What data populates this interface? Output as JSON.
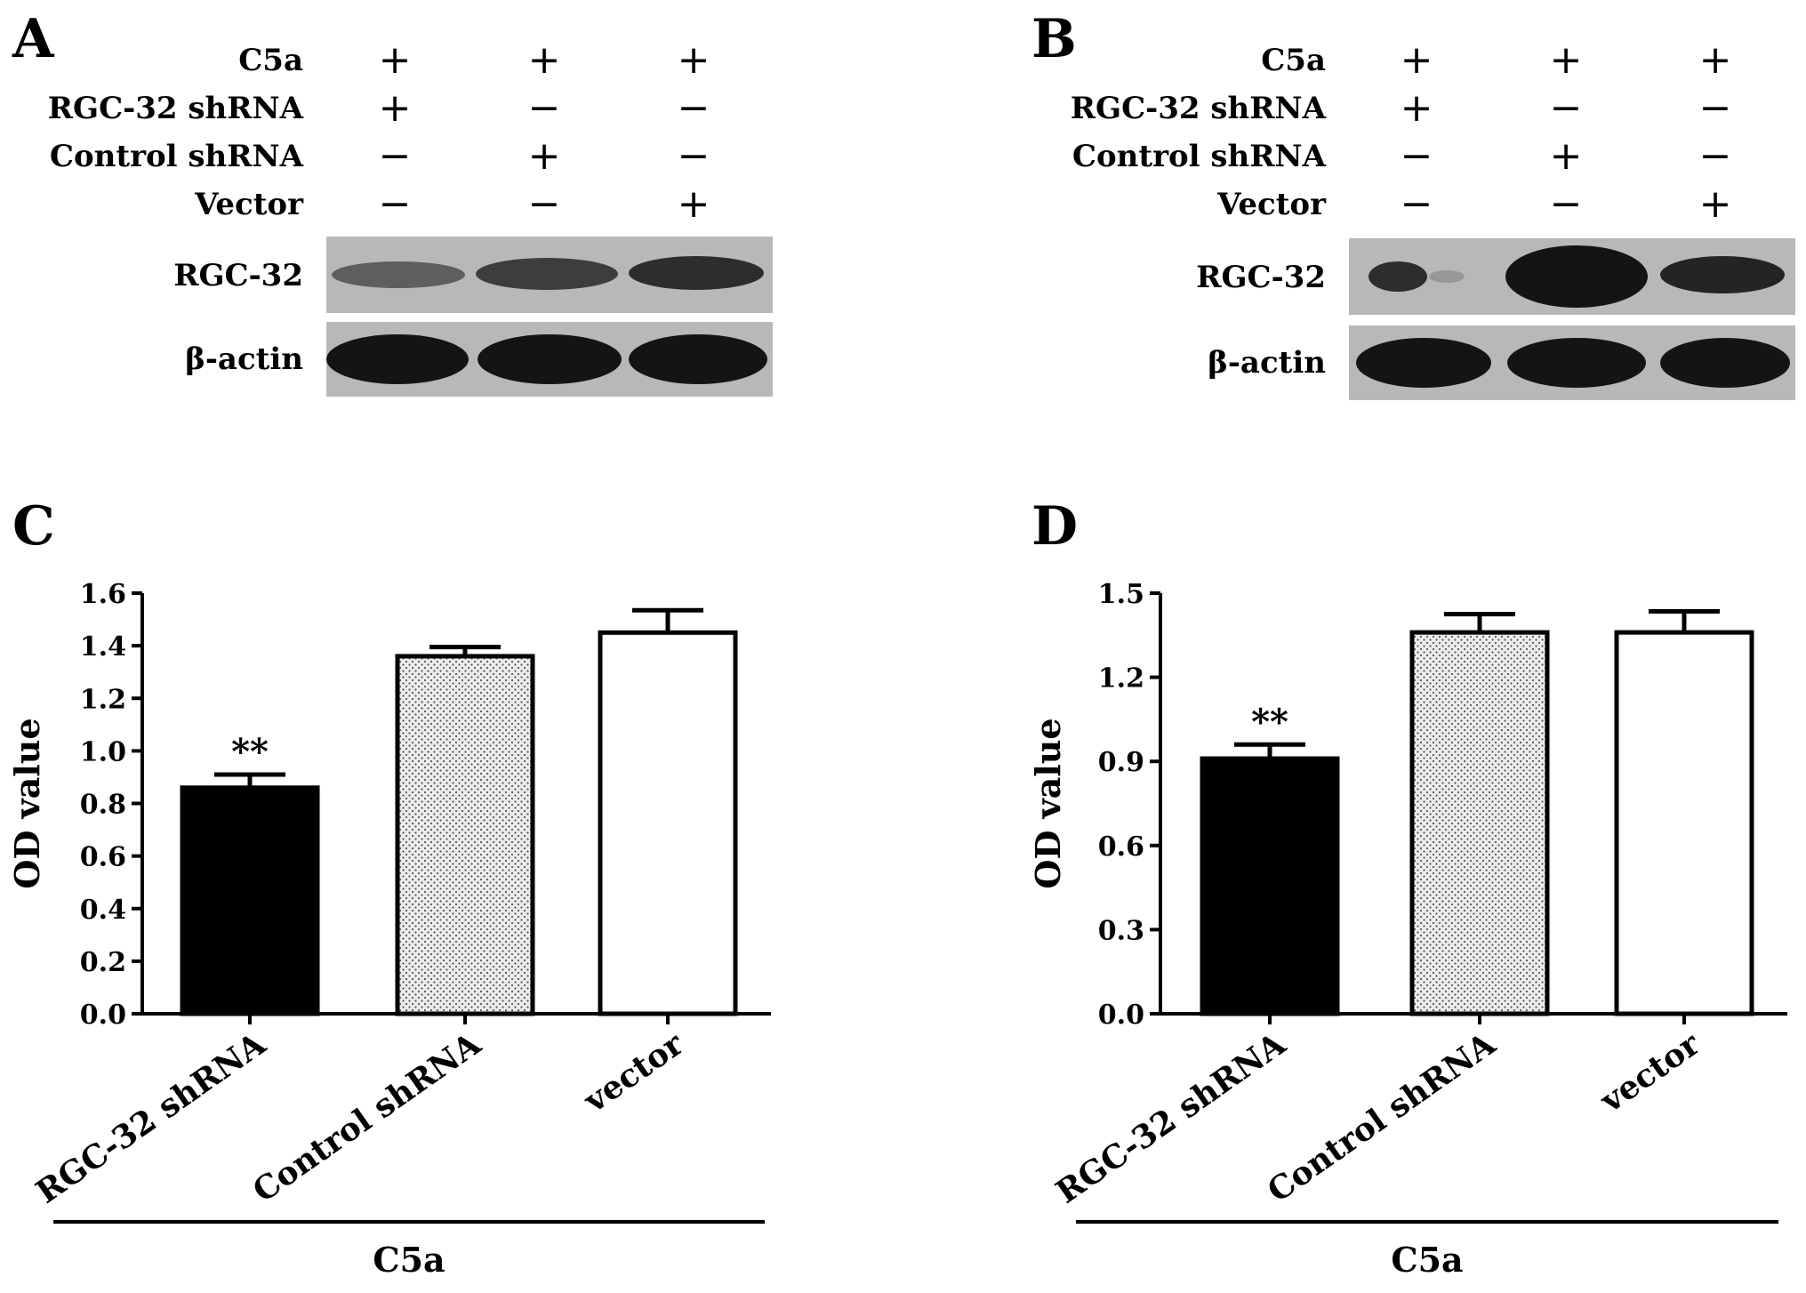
{
  "panels": {
    "A": {
      "letter": "A"
    },
    "B": {
      "letter": "B"
    },
    "C": {
      "letter": "C"
    },
    "D": {
      "letter": "D"
    }
  },
  "blot_labels": {
    "treatments": [
      "C5a",
      "RGC-32 shRNA",
      "Control shRNA",
      "Vector"
    ],
    "signs": [
      [
        "+",
        "+",
        "+"
      ],
      [
        "+",
        "−",
        "−"
      ],
      [
        "−",
        "+",
        "−"
      ],
      [
        "−",
        "−",
        "+"
      ]
    ],
    "bands": [
      "RGC-32",
      "β-actin"
    ]
  },
  "blot_intensities": {
    "A": {
      "RGC-32": [
        0.55,
        0.75,
        0.85
      ],
      "β-actin": [
        1.0,
        1.0,
        1.0
      ]
    },
    "B": {
      "RGC-32": [
        0.25,
        1.0,
        0.85
      ],
      "β-actin": [
        1.0,
        1.0,
        1.0
      ]
    }
  },
  "colors": {
    "black_bar": "#000000",
    "dotted_bar": "#e8e8e8",
    "white_bar": "#ffffff",
    "blot_bg": "#b8b8b8",
    "band": "#141414"
  },
  "chart_data": [
    {
      "type": "bar",
      "panel": "C",
      "title": "",
      "ylabel": "OD value",
      "xlabel": "C5a",
      "categories": [
        "RGC-32 shRNA",
        "Control shRNA",
        "vector"
      ],
      "values": [
        0.86,
        1.36,
        1.45
      ],
      "errors": [
        0.05,
        0.035,
        0.085
      ],
      "annotations": [
        "**",
        "",
        ""
      ],
      "ylim": [
        0,
        1.6
      ],
      "yticks": [
        "0.0",
        "0.2",
        "0.4",
        "0.6",
        "0.8",
        "1.0",
        "1.2",
        "1.4",
        "1.6"
      ],
      "fills": [
        "black",
        "dotted",
        "white"
      ]
    },
    {
      "type": "bar",
      "panel": "D",
      "title": "",
      "ylabel": "OD value",
      "xlabel": "C5a",
      "categories": [
        "RGC-32 shRNA",
        "Control shRNA",
        "vector"
      ],
      "values": [
        0.91,
        1.36,
        1.36
      ],
      "errors": [
        0.05,
        0.065,
        0.075
      ],
      "annotations": [
        "**",
        "",
        ""
      ],
      "ylim": [
        0,
        1.5
      ],
      "yticks": [
        "0.0",
        "0.3",
        "0.6",
        "0.9",
        "1.2",
        "1.5"
      ],
      "fills": [
        "black",
        "dotted",
        "white"
      ]
    }
  ]
}
